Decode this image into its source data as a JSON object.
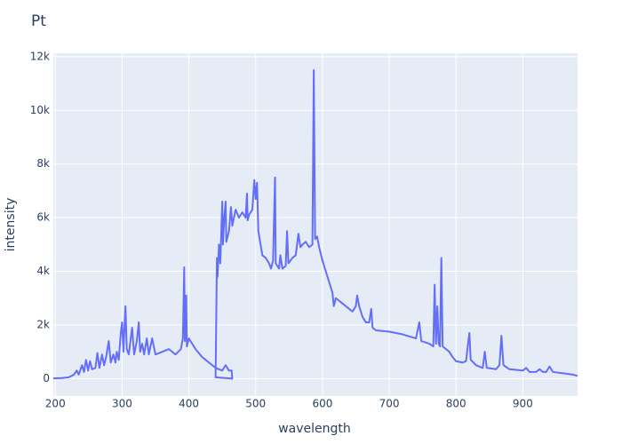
{
  "chart_data": {
    "type": "line",
    "title": "Pt",
    "x_label": "wavelength",
    "y_label": "intensity",
    "color": "#636efa",
    "grid": true,
    "plot_bgcolor": "#e5ecf6",
    "xlim": [
      197,
      982
    ],
    "ylim": [
      -650,
      12130
    ],
    "xticks": [
      200,
      300,
      400,
      500,
      600,
      700,
      800,
      900
    ],
    "yticks": [
      0,
      {
        "value": 2000,
        "label": "2k"
      },
      {
        "value": 4000,
        "label": "4k"
      },
      {
        "value": 6000,
        "label": "6k"
      },
      {
        "value": 8000,
        "label": "8k"
      },
      {
        "value": 10000,
        "label": "10k"
      },
      {
        "value": 12000,
        "label": "12k"
      }
    ],
    "x": [
      197,
      210,
      220,
      228,
      232,
      235,
      240,
      243,
      246,
      249,
      252,
      255,
      260,
      263,
      266,
      270,
      273,
      276,
      280,
      283,
      287,
      290,
      292,
      295,
      298,
      300,
      302,
      305,
      307,
      310,
      315,
      318,
      322,
      325,
      327,
      330,
      333,
      337,
      340,
      345,
      350,
      360,
      370,
      380,
      388,
      391,
      393,
      394,
      396,
      397,
      400,
      410,
      420,
      430,
      440,
      450,
      455,
      460,
      464,
      465,
      440,
      442,
      443,
      445,
      447,
      450,
      451,
      453,
      455,
      456,
      460,
      463,
      465,
      470,
      475,
      480,
      485,
      487,
      488,
      490,
      495,
      498,
      500,
      502,
      504,
      506,
      510,
      515,
      520,
      523,
      526,
      529,
      530,
      535,
      537,
      540,
      545,
      547,
      549,
      555,
      560,
      564,
      567,
      570,
      575,
      580,
      585,
      587,
      589,
      592,
      595,
      600,
      605,
      610,
      615,
      617,
      620,
      625,
      630,
      640,
      645,
      650,
      652,
      655,
      660,
      665,
      670,
      673,
      675,
      680,
      700,
      720,
      740,
      745,
      748,
      760,
      766,
      768,
      770,
      772,
      774,
      776,
      778,
      780,
      790,
      795,
      800,
      810,
      815,
      818,
      820,
      822,
      830,
      840,
      843,
      846,
      860,
      865,
      868,
      871,
      880,
      900,
      905,
      910,
      920,
      925,
      930,
      935,
      940,
      945,
      960,
      975,
      982
    ],
    "values": [
      10,
      20,
      50,
      150,
      300,
      150,
      500,
      250,
      700,
      300,
      650,
      350,
      400,
      950,
      400,
      900,
      500,
      800,
      1400,
      600,
      900,
      600,
      1000,
      700,
      1700,
      2100,
      1000,
      2700,
      1100,
      900,
      1900,
      900,
      1400,
      2100,
      1000,
      1300,
      900,
      1500,
      900,
      1500,
      900,
      1000,
      1100,
      900,
      1100,
      1500,
      4150,
      1400,
      3100,
      1200,
      1500,
      1100,
      800,
      600,
      400,
      300,
      500,
      300,
      300,
      0,
      50,
      4500,
      3800,
      5000,
      4300,
      6600,
      5000,
      6000,
      6600,
      5100,
      5500,
      6400,
      5700,
      6300,
      6000,
      6200,
      6000,
      6900,
      5900,
      6100,
      6300,
      7400,
      6700,
      7300,
      5500,
      5200,
      4600,
      4500,
      4300,
      4100,
      4400,
      7500,
      4300,
      4100,
      4600,
      4100,
      4200,
      5500,
      4300,
      4500,
      4600,
      5400,
      4900,
      5000,
      5100,
      4900,
      5000,
      11500,
      5200,
      5300,
      4900,
      4400,
      4000,
      3600,
      3200,
      2700,
      3000,
      2900,
      2800,
      2600,
      2500,
      2700,
      3100,
      2700,
      2300,
      2100,
      2100,
      2600,
      1900,
      1800,
      1750,
      1650,
      1500,
      2100,
      1400,
      1300,
      1200,
      3500,
      1300,
      2700,
      1300,
      1200,
      4500,
      1200,
      1000,
      800,
      650,
      600,
      650,
      1300,
      1700,
      700,
      500,
      400,
      1000,
      400,
      350,
      500,
      1600,
      500,
      350,
      300,
      400,
      250,
      250,
      350,
      250,
      250,
      450,
      250,
      200,
      150,
      100
    ]
  }
}
